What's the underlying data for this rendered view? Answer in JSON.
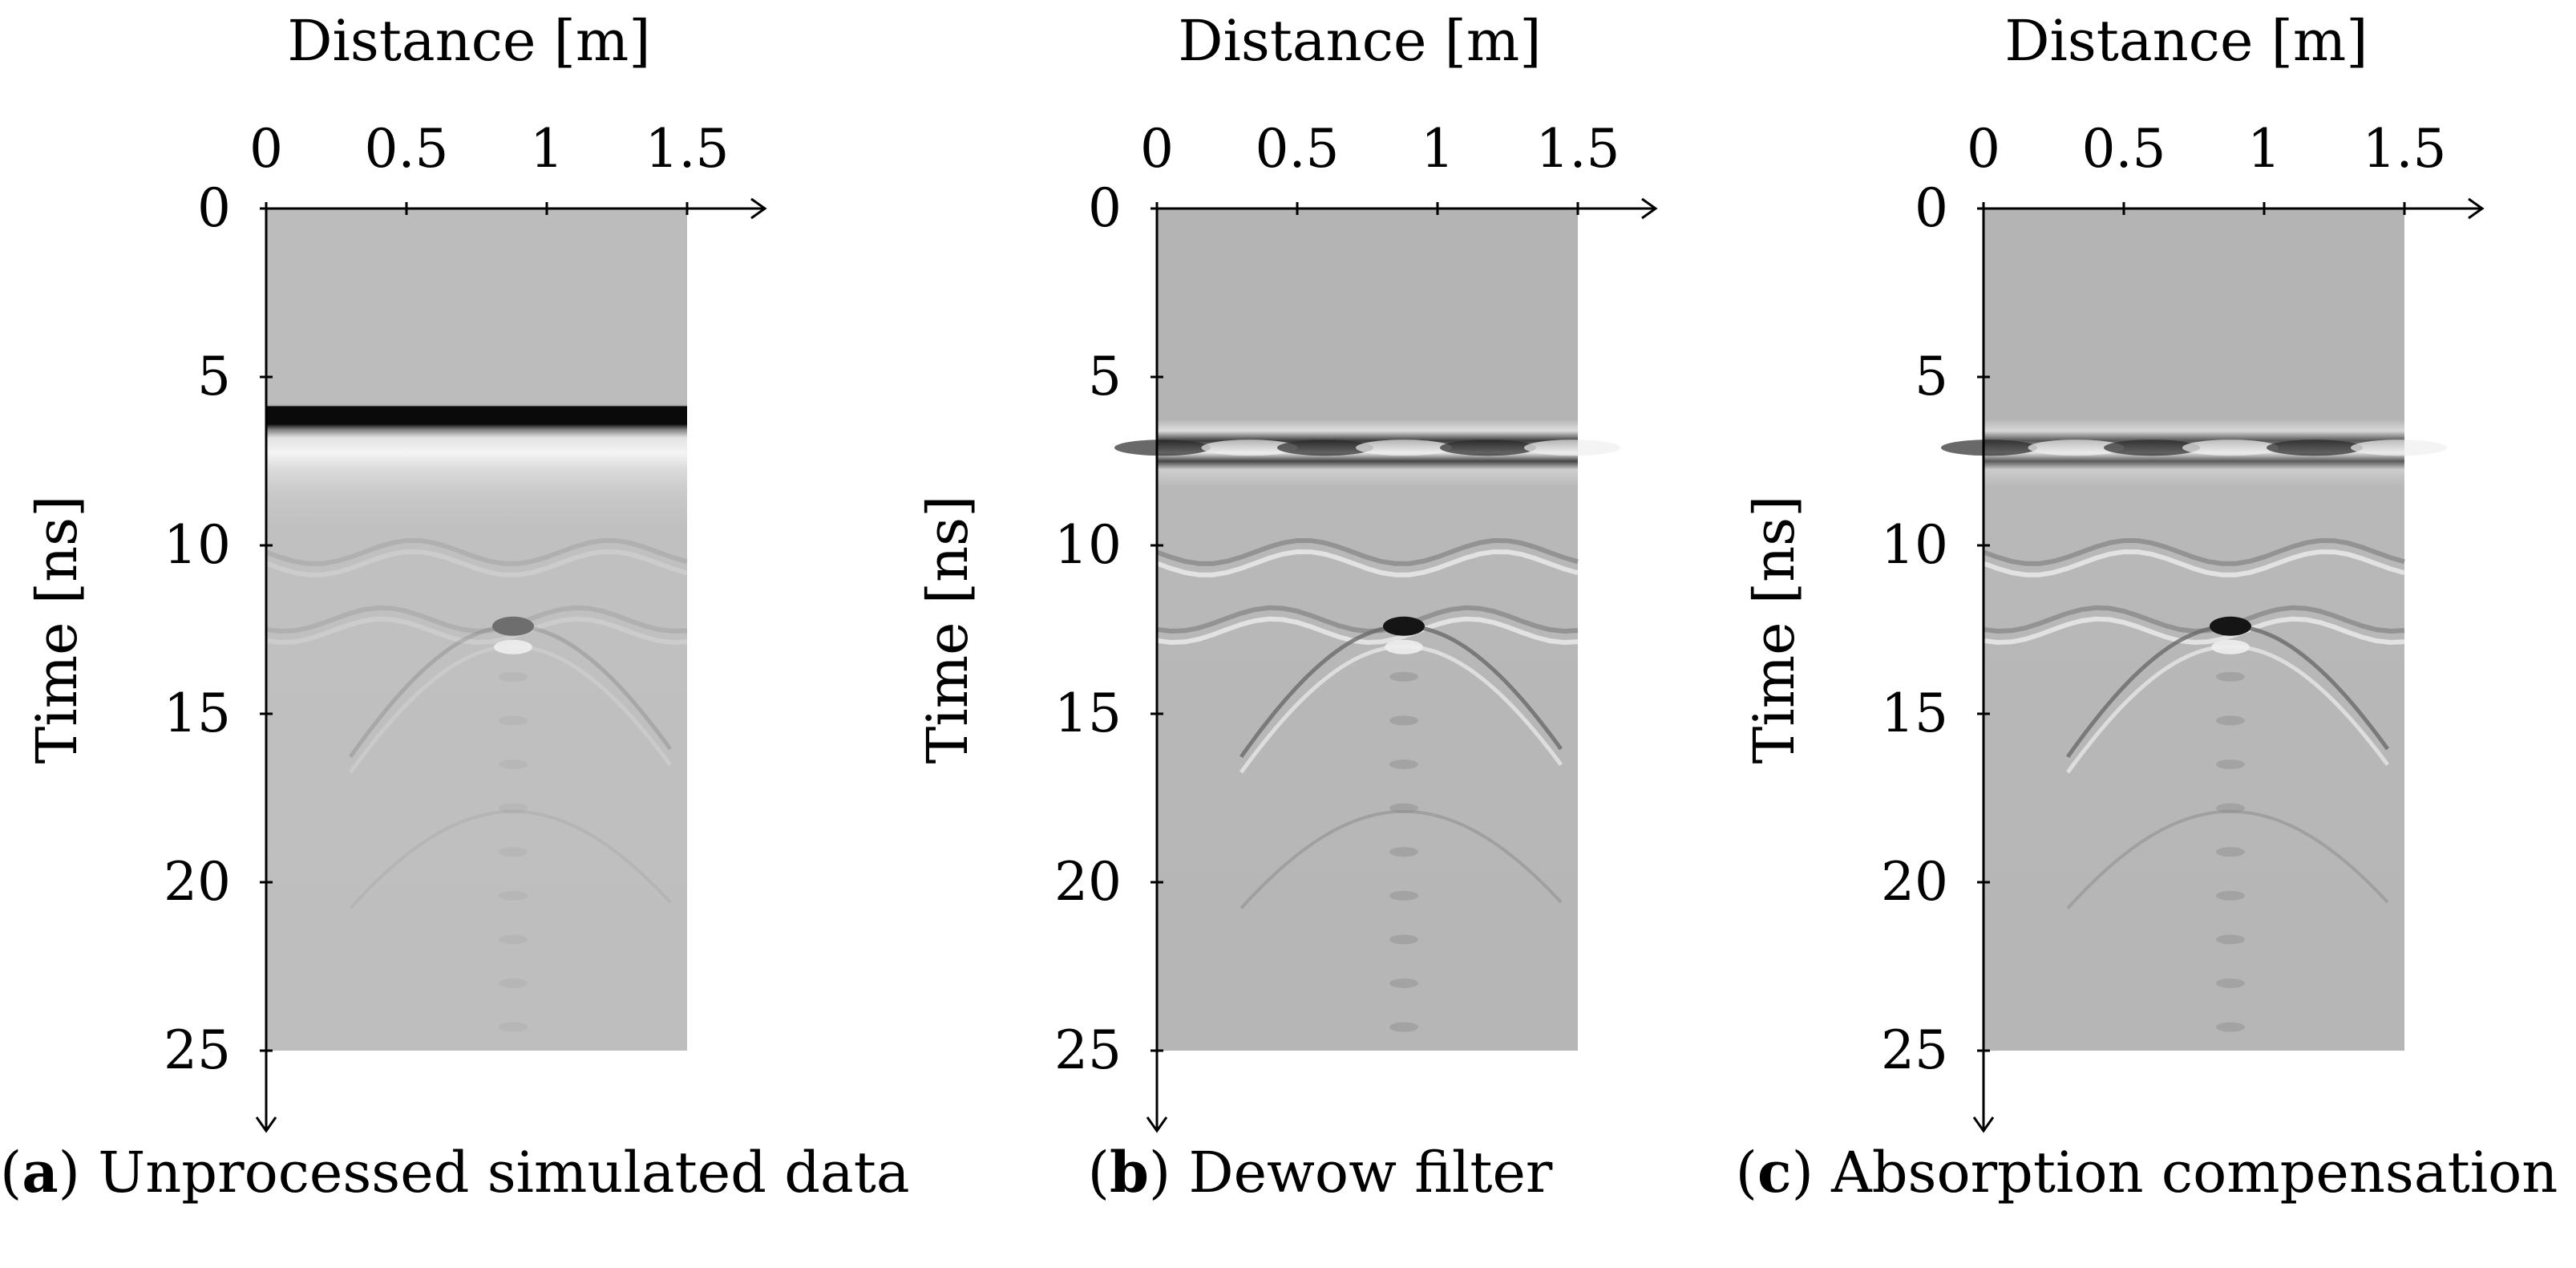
{
  "chart_data": [
    {
      "type": "heatmap",
      "panel_letter": "a",
      "caption": "Unprocessed simulated data",
      "xlabel": "Distance [m]",
      "ylabel": "Time [ns]",
      "xlim": [
        0,
        1.5
      ],
      "ylim": [
        0,
        25
      ],
      "xticks": [
        0,
        0.5,
        1,
        1.5
      ],
      "yticks": [
        0,
        5,
        10,
        15,
        20,
        25
      ],
      "background_gray": "#bcbcbc",
      "features": {
        "direct_wave_ns": 6.2,
        "hyperbola_apex_m": 0.88,
        "hyperbola_apex_ns": 12.4,
        "layers_ns": [
          10.2,
          12.2
        ]
      }
    },
    {
      "type": "heatmap",
      "panel_letter": "b",
      "caption": "Dewow filter",
      "xlabel": "Distance [m]",
      "ylabel": "Time [ns]",
      "xlim": [
        0,
        1.5
      ],
      "ylim": [
        0,
        25
      ],
      "xticks": [
        0,
        0.5,
        1,
        1.5
      ],
      "yticks": [
        0,
        5,
        10,
        15,
        20,
        25
      ],
      "background_gray": "#b4b4b4",
      "features": {
        "direct_wave_ns": 7.1,
        "hyperbola_apex_m": 0.88,
        "hyperbola_apex_ns": 12.4,
        "layers_ns": [
          10.2,
          12.2
        ]
      }
    },
    {
      "type": "heatmap",
      "panel_letter": "c",
      "caption": "Absorption compensation",
      "xlabel": "Distance [m]",
      "ylabel": "Time [ns]",
      "xlim": [
        0,
        1.5
      ],
      "ylim": [
        0,
        25
      ],
      "xticks": [
        0,
        0.5,
        1,
        1.5
      ],
      "yticks": [
        0,
        5,
        10,
        15,
        20,
        25
      ],
      "background_gray": "#b4b4b4",
      "features": {
        "direct_wave_ns": 7.1,
        "hyperbola_apex_m": 0.88,
        "hyperbola_apex_ns": 12.4,
        "layers_ns": [
          10.2,
          12.2
        ]
      }
    }
  ]
}
